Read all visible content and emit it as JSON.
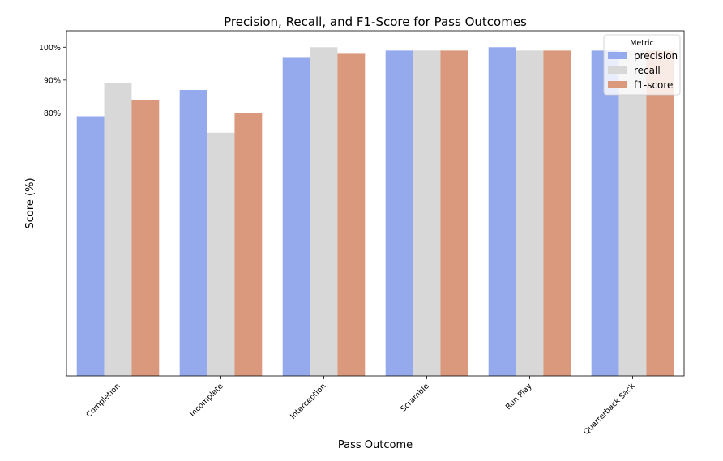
{
  "chart_data": {
    "type": "bar",
    "title": "Precision, Recall, and F1-Score for Pass Outcomes",
    "xlabel": "Pass Outcome",
    "ylabel": "Score (%)",
    "categories": [
      "Completion",
      "Incomplete",
      "Interception",
      "Scramble",
      "Run Play",
      "Quarterback Sack"
    ],
    "series": [
      {
        "name": "precision",
        "color": "#94aaed",
        "values": [
          0.79,
          0.87,
          0.97,
          0.99,
          1.0,
          0.99
        ]
      },
      {
        "name": "recall",
        "color": "#d8d8d8",
        "values": [
          0.89,
          0.74,
          1.0,
          0.99,
          0.99,
          0.99
        ]
      },
      {
        "name": "f1-score",
        "color": "#da997c",
        "values": [
          0.84,
          0.8,
          0.98,
          0.99,
          0.99,
          0.99
        ]
      }
    ],
    "ylim": [
      0.0,
      1.05
    ],
    "yticks": [
      {
        "value": 0.8,
        "label": "80%"
      },
      {
        "value": 0.9,
        "label": "90%"
      },
      {
        "value": 1.0,
        "label": "100%"
      }
    ],
    "legend": {
      "title": "Metric",
      "position": "top-right"
    },
    "grid": false
  }
}
